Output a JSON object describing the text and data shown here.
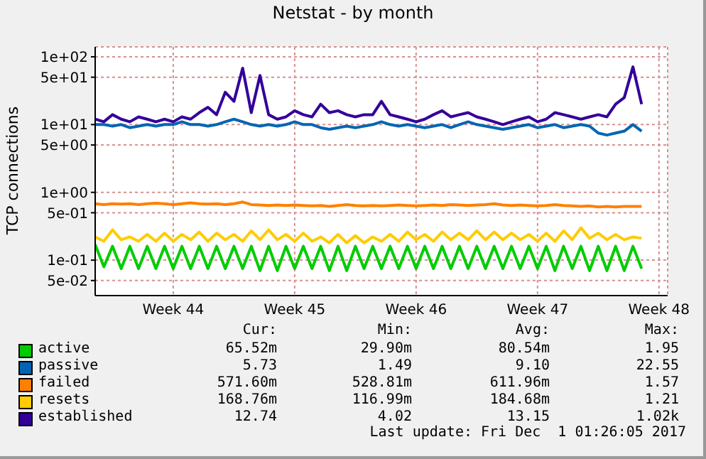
{
  "chart_data": {
    "type": "line",
    "title": "Netstat - by month",
    "ylabel": "TCP connections",
    "log": "y",
    "grid": true,
    "legend": "bottom",
    "marker": "none",
    "line_style": "solid",
    "categories": [
      null,
      null,
      null,
      null,
      null,
      null,
      null,
      null,
      null,
      "Week 44",
      null,
      null,
      null,
      null,
      null,
      null,
      null,
      null,
      null,
      null,
      null,
      null,
      null,
      "Week 45",
      null,
      null,
      null,
      null,
      null,
      null,
      null,
      null,
      null,
      null,
      null,
      null,
      null,
      "Week 46",
      null,
      null,
      null,
      null,
      null,
      null,
      null,
      null,
      null,
      null,
      null,
      null,
      null,
      "Week 47",
      null,
      null,
      null,
      null,
      null,
      null,
      null,
      null,
      null,
      null,
      null,
      null,
      null,
      "Week 48",
      null
    ],
    "ylim": [
      0.03,
      140
    ],
    "yticks": [
      {
        "value": 0.05,
        "label": "5e-02"
      },
      {
        "value": 0.1,
        "label": "1e-01"
      },
      {
        "value": 0.5,
        "label": "5e-01"
      },
      {
        "value": 1,
        "label": "1e+00"
      },
      {
        "value": 5,
        "label": "5e+00"
      },
      {
        "value": 10,
        "label": "1e+01"
      },
      {
        "value": 50,
        "label": "5e+01"
      },
      {
        "value": 100,
        "label": "1e+02"
      }
    ],
    "series": [
      {
        "name": "active",
        "color": "#00cc00",
        "values": [
          0.17,
          0.08,
          0.16,
          0.075,
          0.16,
          0.075,
          0.16,
          0.075,
          0.16,
          0.075,
          0.16,
          0.075,
          0.16,
          0.075,
          0.16,
          0.075,
          0.16,
          0.075,
          0.16,
          0.07,
          0.16,
          0.07,
          0.16,
          0.075,
          0.16,
          0.075,
          0.16,
          0.07,
          0.16,
          0.07,
          0.16,
          0.075,
          0.16,
          0.075,
          0.16,
          0.075,
          0.16,
          0.075,
          0.16,
          0.075,
          0.16,
          0.075,
          0.16,
          0.075,
          0.16,
          0.075,
          0.16,
          0.075,
          0.16,
          0.075,
          0.16,
          0.075,
          0.16,
          0.07,
          0.16,
          0.075,
          0.16,
          0.07,
          0.16,
          0.07,
          0.16,
          0.07,
          0.16,
          0.075,
          null,
          null,
          null
        ]
      },
      {
        "name": "passive",
        "color": "#0066b3",
        "values": [
          10,
          10,
          9.5,
          10,
          9,
          9.5,
          10,
          9.5,
          10,
          10,
          11,
          10,
          10,
          9.5,
          10,
          11,
          12,
          11,
          10,
          9.5,
          10,
          9.5,
          10,
          11,
          10,
          10,
          9,
          8.5,
          9,
          9.5,
          9,
          9.5,
          10,
          11,
          10,
          9.5,
          10,
          9.5,
          9,
          9.5,
          10,
          9,
          10,
          11,
          10,
          9.5,
          9,
          8.5,
          9,
          9.5,
          10,
          9,
          9.5,
          10,
          9,
          9.5,
          10,
          9.5,
          7.5,
          7,
          7.5,
          8,
          10,
          8,
          null,
          null,
          null
        ]
      },
      {
        "name": "failed",
        "color": "#ff8000",
        "values": [
          0.68,
          0.66,
          0.68,
          0.67,
          0.68,
          0.66,
          0.68,
          0.69,
          0.68,
          0.66,
          0.68,
          0.7,
          0.68,
          0.67,
          0.68,
          0.66,
          0.68,
          0.72,
          0.66,
          0.65,
          0.64,
          0.65,
          0.64,
          0.65,
          0.64,
          0.63,
          0.64,
          0.62,
          0.64,
          0.66,
          0.64,
          0.63,
          0.64,
          0.63,
          0.64,
          0.65,
          0.64,
          0.63,
          0.64,
          0.65,
          0.64,
          0.66,
          0.65,
          0.64,
          0.65,
          0.66,
          0.68,
          0.65,
          0.64,
          0.65,
          0.64,
          0.63,
          0.64,
          0.66,
          0.64,
          0.63,
          0.62,
          0.63,
          0.61,
          0.62,
          0.61,
          0.62,
          0.62,
          0.62,
          null,
          null,
          null
        ]
      },
      {
        "name": "resets",
        "color": "#ffcc00",
        "values": [
          0.22,
          0.19,
          0.28,
          0.2,
          0.22,
          0.19,
          0.24,
          0.19,
          0.25,
          0.19,
          0.24,
          0.2,
          0.26,
          0.19,
          0.25,
          0.2,
          0.24,
          0.19,
          0.27,
          0.2,
          0.28,
          0.2,
          0.24,
          0.19,
          0.25,
          0.19,
          0.22,
          0.18,
          0.24,
          0.18,
          0.23,
          0.18,
          0.22,
          0.19,
          0.24,
          0.19,
          0.26,
          0.2,
          0.24,
          0.19,
          0.26,
          0.2,
          0.25,
          0.2,
          0.27,
          0.2,
          0.26,
          0.2,
          0.25,
          0.2,
          0.24,
          0.19,
          0.25,
          0.19,
          0.27,
          0.2,
          0.3,
          0.21,
          0.25,
          0.2,
          0.24,
          0.2,
          0.22,
          0.21,
          null,
          null,
          null
        ]
      },
      {
        "name": "established",
        "color": "#330099",
        "values": [
          12,
          11,
          14,
          12,
          11,
          13,
          12,
          11,
          12,
          11,
          13,
          12,
          15,
          18,
          14,
          30,
          22,
          68,
          15,
          53,
          14,
          12,
          13,
          16,
          14,
          13,
          20,
          15,
          16,
          14,
          13,
          14,
          14,
          22,
          14,
          13,
          12,
          11,
          12,
          14,
          16,
          13,
          14,
          15,
          13,
          12,
          11,
          10,
          11,
          12,
          13,
          11,
          12,
          15,
          14,
          13,
          12,
          13,
          14,
          13,
          20,
          25,
          71,
          20,
          null,
          null,
          null
        ]
      }
    ],
    "annotations": [
      "Cur:",
      "Min:",
      "Avg:",
      "Max:",
      "65.52m",
      "29.90m",
      "80.54m",
      "1.95",
      "5.73",
      "1.49",
      "9.10",
      "22.55",
      "571.60m",
      "528.81m",
      "611.96m",
      "1.57",
      "168.76m",
      "116.99m",
      "184.68m",
      "1.21",
      "12.74",
      "4.02",
      "13.15",
      "1.02k",
      "Last update: Fri Dec  1 01:26:05 2017"
    ]
  }
}
